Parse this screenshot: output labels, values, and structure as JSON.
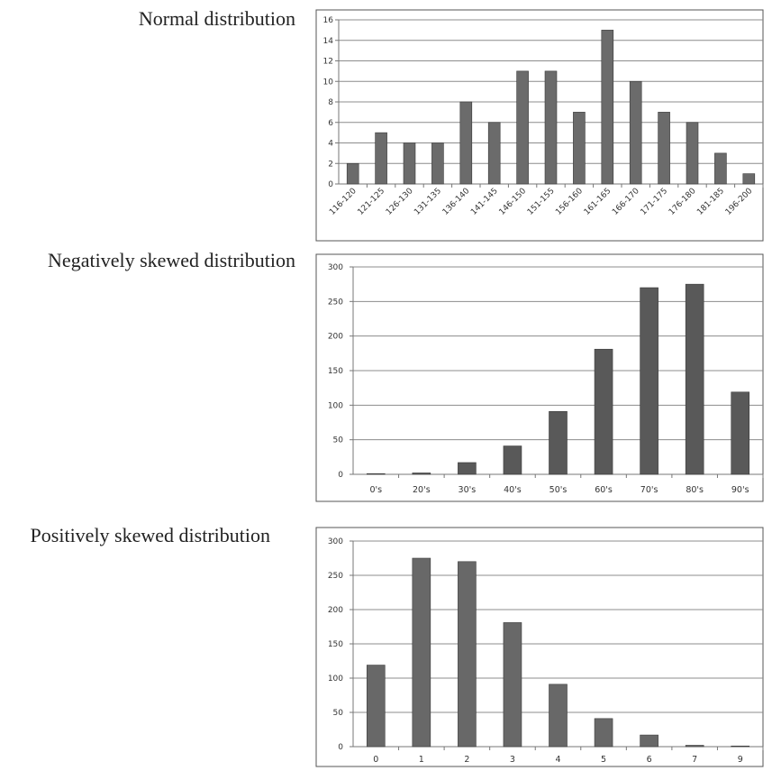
{
  "chart_data": [
    {
      "type": "bar",
      "title": "Normal distribution",
      "categories": [
        "116-120",
        "121-125",
        "126-130",
        "131-135",
        "136-140",
        "141-145",
        "146-150",
        "151-155",
        "156-160",
        "161-165",
        "166-170",
        "171-175",
        "176-180",
        "181-185",
        "196-200"
      ],
      "values": [
        2,
        5,
        4,
        4,
        8,
        6,
        11,
        11,
        7,
        15,
        10,
        7,
        6,
        3,
        1
      ],
      "ylim": [
        0,
        16
      ],
      "yticks": [
        0,
        2,
        4,
        6,
        8,
        10,
        12,
        14,
        16
      ],
      "grid": true,
      "color": "#6b6b6b"
    },
    {
      "type": "bar",
      "title": "Negatively skewed distribution",
      "categories": [
        "0's",
        "20's",
        "30's",
        "40's",
        "50's",
        "60's",
        "70's",
        "80's",
        "90's"
      ],
      "values": [
        1,
        2,
        17,
        41,
        91,
        181,
        270,
        275,
        119
      ],
      "ylim": [
        0,
        300
      ],
      "yticks": [
        0,
        50,
        100,
        150,
        200,
        250,
        300
      ],
      "grid": true,
      "color": "#595959"
    },
    {
      "type": "bar",
      "title": "Positively skewed distribution",
      "categories": [
        "0",
        "1",
        "2",
        "3",
        "4",
        "5",
        "6",
        "7",
        "9"
      ],
      "values": [
        119,
        275,
        270,
        181,
        91,
        41,
        17,
        2,
        1
      ],
      "ylim": [
        0,
        300
      ],
      "yticks": [
        0,
        50,
        100,
        150,
        200,
        250,
        300
      ],
      "grid": true,
      "color": "#686868"
    }
  ]
}
